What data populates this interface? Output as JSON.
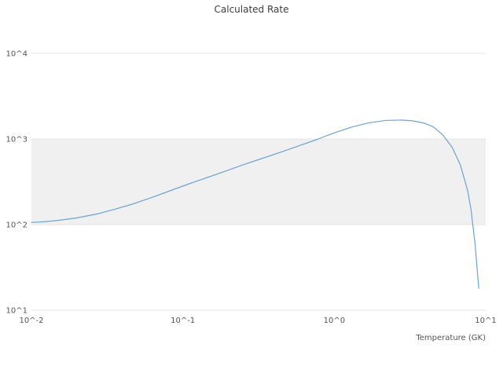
{
  "title": "Calculated Rate",
  "axes": {
    "xlabel": "Temperature (GK)",
    "x_ticks": [
      {
        "label": "10^-2",
        "value": 0.01
      },
      {
        "label": "10^-1",
        "value": 0.1
      },
      {
        "label": "10^0",
        "value": 1
      },
      {
        "label": "10^1",
        "value": 10
      }
    ],
    "y_ticks": [
      {
        "label": "10^1",
        "value": 10
      },
      {
        "label": "10^2",
        "value": 100
      },
      {
        "label": "10^3",
        "value": 1000
      },
      {
        "label": "10^4",
        "value": 10000
      }
    ]
  },
  "colors": {
    "line": "#6ba3d6",
    "band": "#f0f0f0",
    "gridline": "#e5e5e5",
    "text": "#545454"
  },
  "chart_data": {
    "type": "line",
    "title": "Calculated Rate",
    "xlabel": "Temperature (GK)",
    "ylabel": "",
    "x_scale": "log",
    "y_scale": "log",
    "xlim": [
      0.01,
      10
    ],
    "ylim": [
      10,
      10000
    ],
    "grid": "alternating horizontal decade bands, shaded between 10^2 and 10^3",
    "legend": "none",
    "x": [
      0.01,
      0.012,
      0.015,
      0.02,
      0.027,
      0.035,
      0.047,
      0.062,
      0.082,
      0.11,
      0.145,
      0.19,
      0.25,
      0.33,
      0.44,
      0.58,
      0.77,
      1.0,
      1.3,
      1.7,
      2.2,
      2.8,
      3.3,
      3.9,
      4.5,
      5.2,
      6.0,
      6.8,
      7.6,
      8.0,
      8.5,
      9.0
    ],
    "y": [
      106,
      108,
      112,
      120,
      133,
      150,
      175,
      207,
      248,
      300,
      355,
      420,
      500,
      590,
      700,
      830,
      990,
      1180,
      1380,
      1550,
      1650,
      1665,
      1630,
      1540,
      1390,
      1120,
      800,
      500,
      250,
      150,
      60,
      18
    ]
  }
}
